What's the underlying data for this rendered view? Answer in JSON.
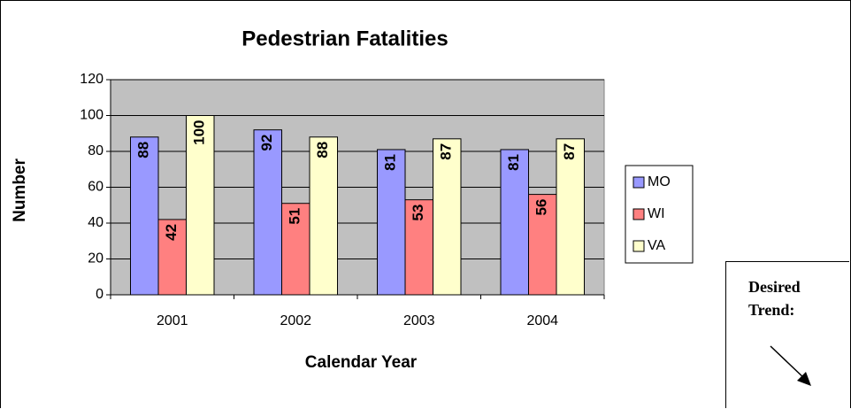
{
  "chart_data": {
    "type": "bar",
    "title": "Pedestrian Fatalities",
    "x_label": "Calendar Year",
    "y_label": "Number",
    "categories": [
      "2001",
      "2002",
      "2003",
      "2004"
    ],
    "series": [
      {
        "name": "MO",
        "color": "#9999ff",
        "values": [
          88,
          92,
          81,
          81
        ]
      },
      {
        "name": "WI",
        "color": "#ff8080",
        "values": [
          42,
          51,
          53,
          56
        ]
      },
      {
        "name": "VA",
        "color": "#ffffcc",
        "values": [
          100,
          88,
          87,
          87
        ]
      }
    ],
    "ylim": [
      0,
      120
    ],
    "yticks": [
      0,
      20,
      40,
      60,
      80,
      100,
      120
    ],
    "grid": true,
    "plot_background": "#c0c0c0",
    "legend": "right",
    "annotation": "Desired Trend:"
  }
}
